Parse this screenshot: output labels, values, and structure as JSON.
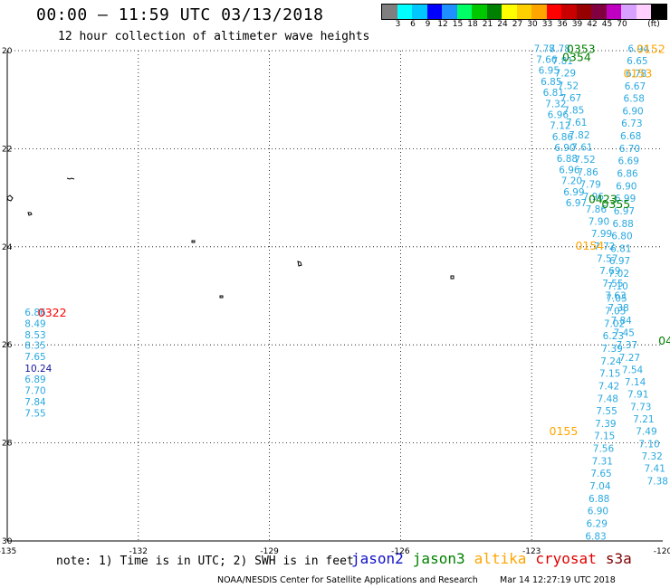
{
  "title": "00:00 – 11:59 UTC 03/13/2018",
  "subtitle": "12 hour collection of altimeter wave heights",
  "colorbar": {
    "colors": [
      "#7f7f7f",
      "#00ffff",
      "#00c8ff",
      "#0000ff",
      "#1e90ff",
      "#00ff66",
      "#00c800",
      "#008000",
      "#ffff00",
      "#ffd000",
      "#ffa500",
      "#ff0000",
      "#c80000",
      "#960000",
      "#800040",
      "#c000c0",
      "#d8a0ff",
      "#ffd0ff",
      "#000000"
    ],
    "labels": [
      "3",
      "6",
      "9",
      "12",
      "15",
      "18",
      "21",
      "24",
      "27",
      "30",
      "33",
      "36",
      "39",
      "42",
      "45",
      "70",
      "(ft)"
    ]
  },
  "axes": {
    "lon_labels": [
      "-135",
      "-132",
      "-129",
      "-126",
      "-123",
      "-120"
    ],
    "lat_labels": [
      "20",
      "22",
      "24",
      "26",
      "28",
      "30"
    ]
  },
  "track_times": [
    {
      "text": "0322",
      "color": "#ff0000",
      "lon": -134.3,
      "lat": 25.33
    },
    {
      "text": "0353",
      "color": "#008000",
      "lon": -122.2,
      "lat": 19.95
    },
    {
      "text": "0354",
      "color": "#008000",
      "lon": -122.3,
      "lat": 20.12
    },
    {
      "text": "0152",
      "color": "#ffa500",
      "lon": -120.6,
      "lat": 19.95
    },
    {
      "text": "0153",
      "color": "#ffa500",
      "lon": -120.9,
      "lat": 20.45
    },
    {
      "text": "0423",
      "color": "#008000",
      "lon": -121.7,
      "lat": 23.02
    },
    {
      "text": "0355",
      "color": "#008000",
      "lon": -121.4,
      "lat": 23.12
    },
    {
      "text": "0154",
      "color": "#ffa500",
      "lon": -122.0,
      "lat": 23.97
    },
    {
      "text": "0155",
      "color": "#ffa500",
      "lon": -122.6,
      "lat": 27.75
    },
    {
      "text": "04",
      "color": "#008000",
      "lon": -120.1,
      "lat": 25.9
    }
  ],
  "left_column_values": {
    "lon": -134.6,
    "entries": [
      {
        "text": "6.86",
        "lat": 25.33,
        "color": "#29a9e0"
      },
      {
        "text": "8.49",
        "lat": 25.56,
        "color": "#29a9e0"
      },
      {
        "text": "8.53",
        "lat": 25.79,
        "color": "#29a9e0"
      },
      {
        "text": "8.35",
        "lat": 26.01,
        "color": "#29a9e0"
      },
      {
        "text": "7.65",
        "lat": 26.24,
        "color": "#29a9e0"
      },
      {
        "text": "10.24",
        "lat": 26.48,
        "color": "#1515a0"
      },
      {
        "text": "6.89",
        "lat": 26.7,
        "color": "#29a9e0"
      },
      {
        "text": "7.70",
        "lat": 26.93,
        "color": "#29a9e0"
      },
      {
        "text": "7.84",
        "lat": 27.16,
        "color": "#29a9e0"
      },
      {
        "text": "7.55",
        "lat": 27.39,
        "color": "#29a9e0"
      }
    ]
  },
  "track_columns": [
    {
      "name": "altika-right",
      "lon_start": -120.8,
      "lat_start": 19.95,
      "lon_step": -0.025,
      "lat_step": 0.255,
      "values": [
        "6.94",
        "6.65",
        "6.78",
        "6.67",
        "6.58",
        "6.90",
        "6.73",
        "6.68",
        "6.70",
        "6.69",
        "6.86",
        "6.90",
        "6.99",
        "6.97",
        "6.88",
        "6.80",
        "6.81",
        "6.97",
        "7.02",
        "7.10",
        "7.05",
        "7.05",
        "7.02",
        "6.23",
        "7.39",
        "7.24",
        "7.15",
        "7.42",
        "7.48",
        "7.55",
        "7.39",
        "7.15",
        "7.56",
        "7.31",
        "7.65",
        "7.04",
        "6.88",
        "6.90",
        "6.29",
        "6.83"
      ]
    },
    {
      "name": "jason3-diag",
      "lon_start": -122.6,
      "lat_start": 19.95,
      "lon_step": 0.064,
      "lat_step": 0.252,
      "values": [
        "7.78",
        "7.81",
        "7.29",
        "7.52",
        "7.67",
        "7.85",
        "7.61",
        "7.82",
        "7.61",
        "7.52",
        "7.86",
        "7.79",
        "7.96",
        "7.86",
        "7.90",
        "7.99",
        "7.72",
        "7.57",
        "7.69",
        "7.55",
        "7.63",
        "7.38",
        "7.84",
        "7.45",
        "7.37",
        "7.27",
        "7.54",
        "7.14",
        "7.91",
        "7.73",
        "7.21",
        "7.49",
        "7.10",
        "7.32",
        "7.41",
        "7.38"
      ]
    },
    {
      "name": "cryosat-left",
      "lon_start": -122.95,
      "lat_start": 19.95,
      "lon_step": 0.052,
      "lat_step": 0.225,
      "values": [
        "7.78",
        "7.66",
        "6.95",
        "6.85",
        "6.81",
        "7.32",
        "6.96",
        "7.12",
        "6.86",
        "6.90",
        "6.88",
        "6.96",
        "7.20",
        "6.99",
        "6.97"
      ]
    }
  ]
}
